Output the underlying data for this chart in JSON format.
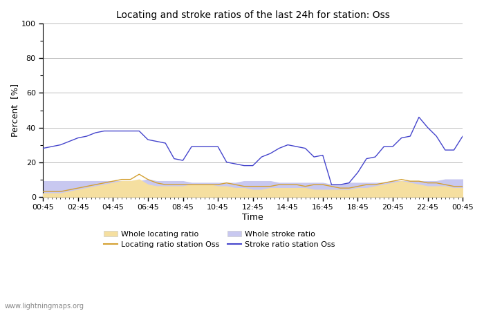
{
  "title": "Locating and stroke ratios of the last 24h for station: Oss",
  "xlabel": "Time",
  "ylabel": "Percent  [%]",
  "watermark": "www.lightningmaps.org",
  "xlim": [
    0,
    48
  ],
  "ylim": [
    0,
    100
  ],
  "yticks": [
    0,
    20,
    40,
    60,
    80,
    100
  ],
  "yticks_minor": [
    10,
    30,
    50,
    70,
    90
  ],
  "xtick_labels": [
    "00:45",
    "02:45",
    "04:45",
    "06:45",
    "08:45",
    "10:45",
    "12:45",
    "14:45",
    "16:45",
    "18:45",
    "20:45",
    "22:45",
    "00:45"
  ],
  "xtick_positions": [
    0,
    4,
    8,
    12,
    16,
    20,
    24,
    28,
    32,
    36,
    40,
    44,
    48
  ],
  "background_color": "#ffffff",
  "plot_bg_color": "#ffffff",
  "grid_color": "#bbbbbb",
  "whole_locating_color": "#f5dfa0",
  "whole_stroke_color": "#c8c8f0",
  "locating_line_color": "#d4a030",
  "stroke_line_color": "#4444cc",
  "whole_locating_ratio": [
    2,
    2,
    2,
    3,
    4,
    5,
    6,
    7,
    8,
    9,
    9,
    10,
    7,
    6,
    6,
    6,
    6,
    7,
    7,
    7,
    6,
    6,
    5,
    5,
    4,
    4,
    5,
    5,
    5,
    5,
    5,
    4,
    4,
    4,
    4,
    4,
    5,
    5,
    6,
    7,
    8,
    9,
    8,
    7,
    6,
    6,
    6,
    5,
    5
  ],
  "whole_stroke_ratio": [
    9,
    9,
    9,
    9,
    9,
    9,
    9,
    9,
    9,
    9,
    9,
    9,
    10,
    9,
    9,
    9,
    9,
    8,
    8,
    8,
    8,
    8,
    8,
    9,
    9,
    9,
    9,
    8,
    8,
    8,
    8,
    8,
    8,
    7,
    7,
    8,
    8,
    8,
    8,
    8,
    9,
    9,
    9,
    9,
    9,
    9,
    10,
    10,
    10
  ],
  "locating_station": [
    3,
    3,
    3,
    4,
    5,
    6,
    7,
    8,
    9,
    10,
    10,
    13,
    10,
    8,
    7,
    7,
    7,
    7,
    7,
    7,
    7,
    8,
    7,
    6,
    6,
    6,
    6,
    7,
    7,
    7,
    6,
    7,
    7,
    6,
    5,
    5,
    6,
    7,
    7,
    8,
    9,
    10,
    9,
    9,
    8,
    8,
    7,
    6,
    6
  ],
  "stroke_station": [
    28,
    29,
    30,
    32,
    34,
    35,
    37,
    38,
    38,
    38,
    38,
    38,
    33,
    32,
    31,
    22,
    21,
    29,
    29,
    29,
    29,
    20,
    19,
    18,
    18,
    23,
    25,
    28,
    30,
    29,
    28,
    23,
    24,
    7,
    7,
    8,
    14,
    22,
    23,
    29,
    29,
    34,
    35,
    46,
    40,
    35,
    27,
    27,
    35
  ]
}
